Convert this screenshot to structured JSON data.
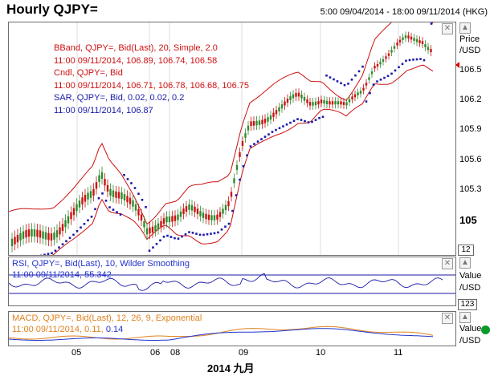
{
  "header": {
    "title": "Hourly QJPY=",
    "range": "5:00 09/04/2014 - 18:00 09/11/2014 (HKG)"
  },
  "price_panel": {
    "legend": {
      "bband": "BBand, QJPY=, Bid(Last),  20, Simple, 2.0",
      "bband_values": "11:00 09/11/2014, 106.89, 106.74, 106.58",
      "cndl": "Cndl, QJPY=, Bid",
      "cndl_values": "11:00 09/11/2014, 106.71, 106.78, 106.68, 106.75",
      "sar": "SAR, QJPY=, Bid,  0.02, 0.02, 0.2",
      "sar_values": "11:00 09/11/2014, 106.87"
    },
    "axis_title_1": "Price",
    "axis_title_2": "/USD",
    "axis_ticks": [
      "106.5",
      "106.2",
      "105.9",
      "105.6",
      "105.3",
      "105"
    ],
    "axis_box": "12",
    "colors": {
      "candle_up": "#2e8b2e",
      "candle_down": "#cc1111",
      "bband": "#cc1111",
      "sar": "#1a1aaa"
    }
  },
  "rsi_panel": {
    "legend": "RSI, QJPY=, Bid(Last),  10, Wilder Smoothing",
    "values": "11:00 09/11/2014, 55.342",
    "axis_title_1": "Value",
    "axis_title_2": "/USD",
    "axis_box": "123"
  },
  "macd_panel": {
    "legend": "MACD, QJPY=, Bid(Last),  12, 26, 9, Exponential",
    "values_prefix": "11:00 09/11/2014, 0.11,",
    "values_signal": "0.14",
    "axis_title_1": "Value",
    "axis_title_2": "/USD"
  },
  "x_axis": {
    "day_labels": [
      "05",
      "06",
      "08",
      "09",
      "10",
      "11"
    ],
    "month_label": "2014 九月"
  }
}
